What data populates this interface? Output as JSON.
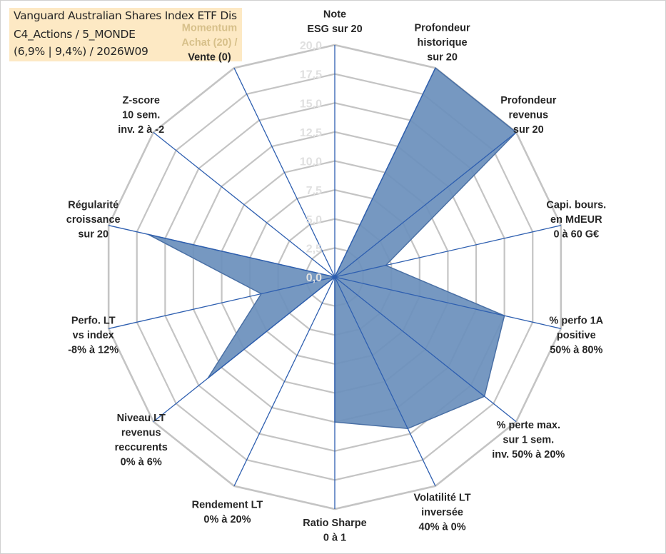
{
  "title": {
    "line1": "Vanguard Australian Shares Index ETF Dis",
    "line2": "C4_Actions / 5_MONDE",
    "line3": "(6,9% | 9,4%) / 2026W09"
  },
  "chart_data": {
    "type": "radar",
    "rmin": 0,
    "rmax": 20,
    "ticks": [
      "0,0",
      "2,5",
      "5,0",
      "7,5",
      "10,0",
      "12,5",
      "15,0",
      "17,5",
      "20,0"
    ],
    "categories": [
      [
        "Note",
        "ESG sur 20"
      ],
      [
        "Profondeur",
        "historique",
        "sur 20"
      ],
      [
        "Profondeur",
        "revenus",
        "sur 20"
      ],
      [
        "Capi. bours.",
        "en MdEUR",
        "0 à 60 G€"
      ],
      [
        "% perfo 1A",
        "positive",
        "50% à 80%"
      ],
      [
        "% perte max.",
        "sur 1 sem.",
        "inv. 50% à 20%"
      ],
      [
        "Volatilité LT",
        "inversée",
        "40% à 0%"
      ],
      [
        "Ratio Sharpe",
        "0 à 1"
      ],
      [
        "Rendement LT",
        "0% à 20%"
      ],
      [
        "Niveau LT",
        "revenus",
        "reccurents",
        "0% à 6%"
      ],
      [
        "Perfo. LT",
        "vs index",
        "-8% à 12%"
      ],
      [
        "Régularité",
        "croissance",
        "sur 20"
      ],
      [
        "Z-score",
        "10 sem.",
        "inv. 2 à -2"
      ],
      [
        "Momentum",
        "Achat (20) /",
        "Vente (0)"
      ]
    ],
    "values": [
      0,
      20,
      20,
      4.5,
      15,
      16.5,
      14.5,
      12.5,
      0,
      14,
      6.5,
      16.5,
      0,
      0
    ],
    "series_color": "#6a8fbc",
    "series_line": "#4a70a5",
    "axis_color": "#2e5fb0",
    "grid_color": "#c4c4c4",
    "grid": true,
    "legend": "none"
  }
}
